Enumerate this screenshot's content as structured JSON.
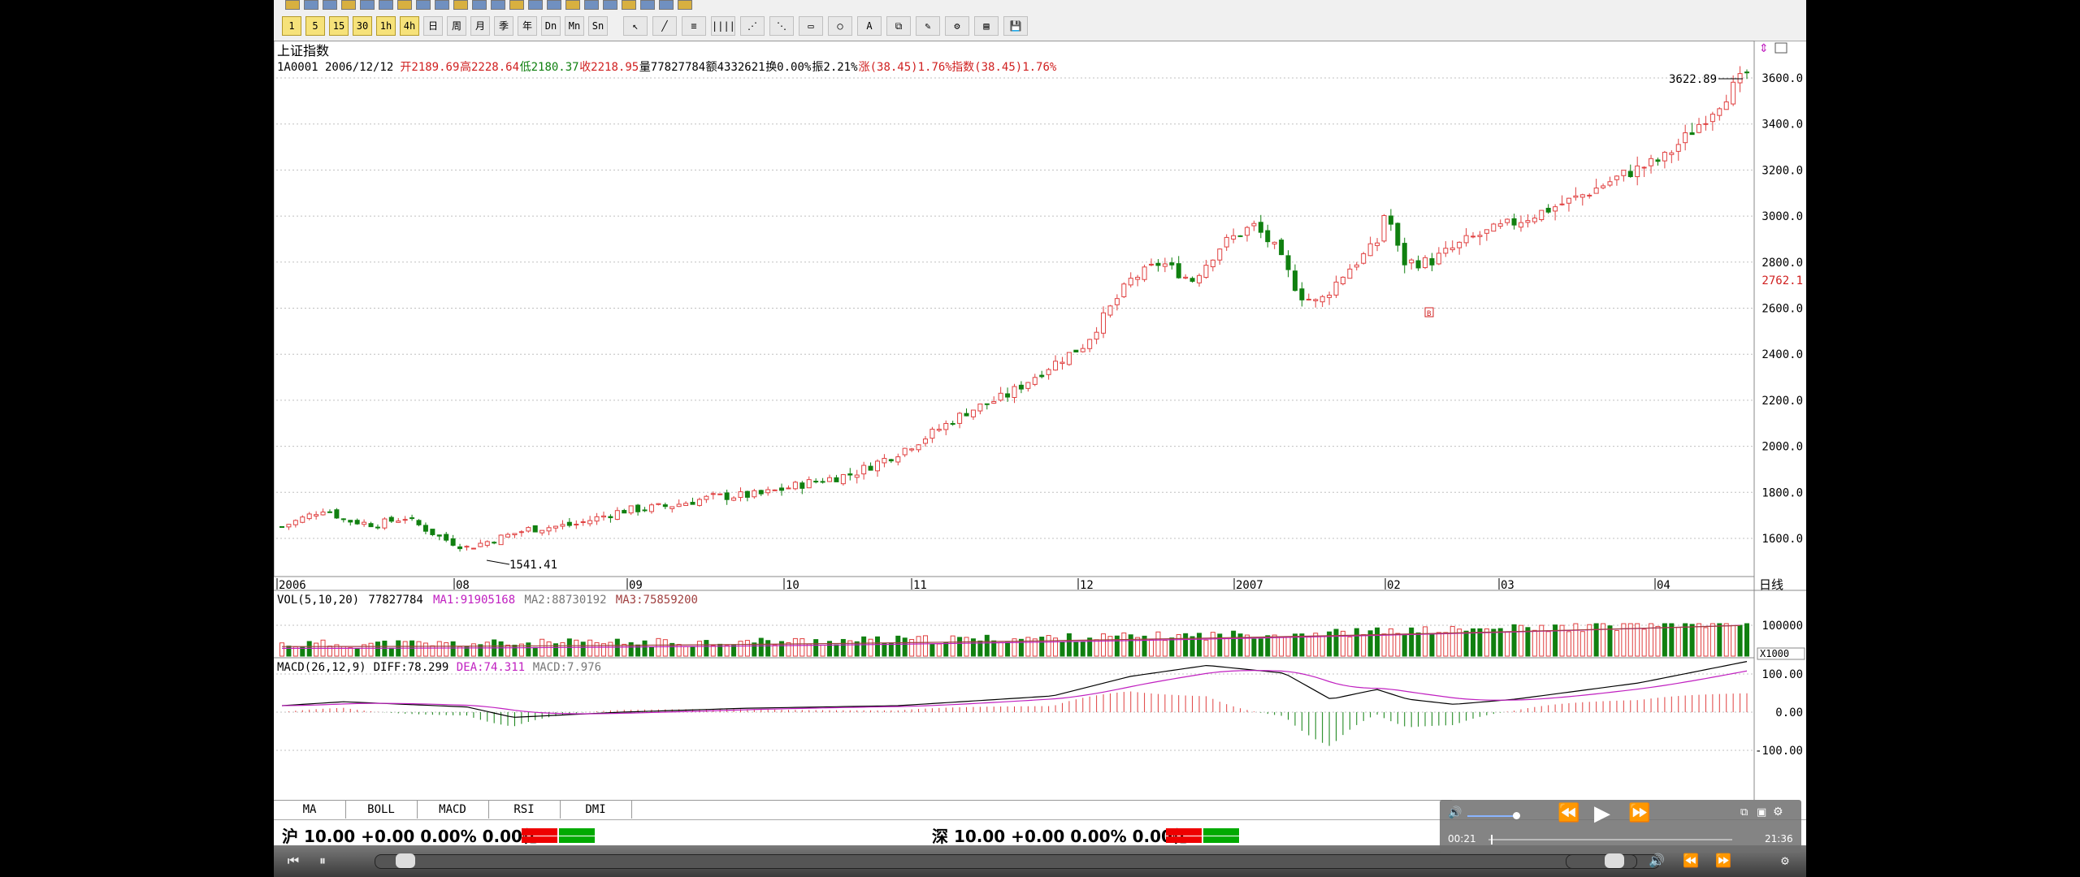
{
  "toolbar": {
    "buttons": [
      "□",
      "⊞",
      "▣",
      "◫",
      "▤",
      "☰",
      "▦",
      "⊡",
      "⊠",
      "▧",
      "▨",
      "▩"
    ],
    "period_buttons": [
      "1",
      "5",
      "15",
      "30",
      "1h",
      "4h",
      "日",
      "周",
      "月",
      "季",
      "年",
      "Dn",
      "Mn",
      "Sn"
    ],
    "draw_tools": [
      "↖",
      "╱",
      "≡",
      "||||",
      "⋰",
      "⋱",
      "▭",
      "○",
      "A",
      "⧉",
      "✎",
      "⚙",
      "▤",
      "💾"
    ]
  },
  "chart": {
    "name": "上证指数",
    "info": {
      "code_date": "1A0001 2006/12/12",
      "open": "开2189.69",
      "high": "高2228.64",
      "low": "低2180.37",
      "close": "收2218.95",
      "volume": "量77827784",
      "amount": "额4332621",
      "turnover": "换0.00%",
      "amplitude": "振2.21%",
      "change": "涨(38.45)1.76%",
      "index_change": "指数(38.45)1.76%"
    },
    "max_label": "3622.89",
    "min_label": "1541.41",
    "current_price_label": "2762.1",
    "price_ticks": [
      "3600.0",
      "3400.0",
      "3200.0",
      "3000.0",
      "2800.0",
      "2600.0",
      "2400.0",
      "2200.0",
      "2000.0",
      "1800.0",
      "1600.0"
    ],
    "time_labels": [
      "2006",
      "08",
      "09",
      "10",
      "11",
      "12",
      "2007",
      "02",
      "03",
      "04"
    ],
    "period_label": "日线",
    "marker_label": "B"
  },
  "volume": {
    "label": "VOL(5,10,20)",
    "value": "77827784",
    "ma1": "MA1:91905168",
    "ma2": "MA2:88730192",
    "ma3": "MA3:75859200",
    "tick": "100000",
    "unit": "X1000"
  },
  "macd": {
    "label": "MACD(26,12,9)",
    "diff": "DIFF:78.299",
    "dea": "DEA:74.311",
    "macd": "MACD:7.976",
    "ticks": [
      "100.00",
      "0.00",
      "-100.00"
    ]
  },
  "indicator_tabs": [
    "MA",
    "BOLL",
    "MACD",
    "RSI",
    "DMI"
  ],
  "status": {
    "sh": "沪 10.00 +0.00 0.00% 0.00亿",
    "sz": "深 10.00 +0.00 0.00% 0.00亿"
  },
  "player": {
    "current_time": "00:21",
    "total_time": "21:36"
  },
  "colors": {
    "up": "#e04040",
    "down": "#108010",
    "grid": "#c0c0c0",
    "ma_purple": "#c020c0",
    "ma_brown": "#a04040"
  }
}
